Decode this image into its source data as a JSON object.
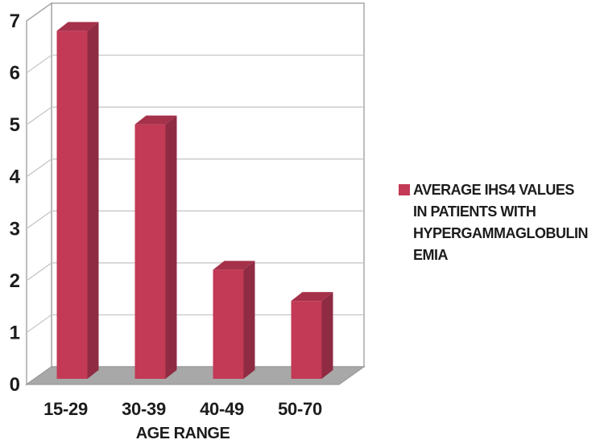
{
  "chart_data": {
    "type": "bar",
    "style": "3d-column",
    "title": "",
    "categories": [
      "15-29",
      "30-39",
      "40-49",
      "50-70"
    ],
    "series": [
      {
        "name": "AVERAGE IHS4 VALUES IN PATIENTS WITH HYPERGAMMAGLOBULINEMIA",
        "values": [
          6.7,
          4.9,
          2.1,
          1.5
        ]
      }
    ],
    "xlabel": "AGE RANGE",
    "ylabel": "",
    "ylim": [
      0,
      7
    ],
    "ytick_step": 1,
    "yticks": [
      "0",
      "1",
      "2",
      "3",
      "4",
      "5",
      "6",
      "7"
    ],
    "grid": true,
    "legend_position": "right",
    "legend_lines": [
      "AVERAGE IHS4 VALUES",
      "IN PATIENTS WITH",
      "HYPERGAMMAGLOBULIN",
      "EMIA"
    ],
    "colors": {
      "bar_front": "#c23a56",
      "bar_top": "#a5314a",
      "bar_side": "#8f2b43",
      "floor": "#a8a8a8",
      "floor_border": "#9b9b9b",
      "wall_border": "#a8a8a8",
      "gridline": "#c2c2c2",
      "text": "#1c1c1c",
      "background": "#ffffff"
    }
  }
}
